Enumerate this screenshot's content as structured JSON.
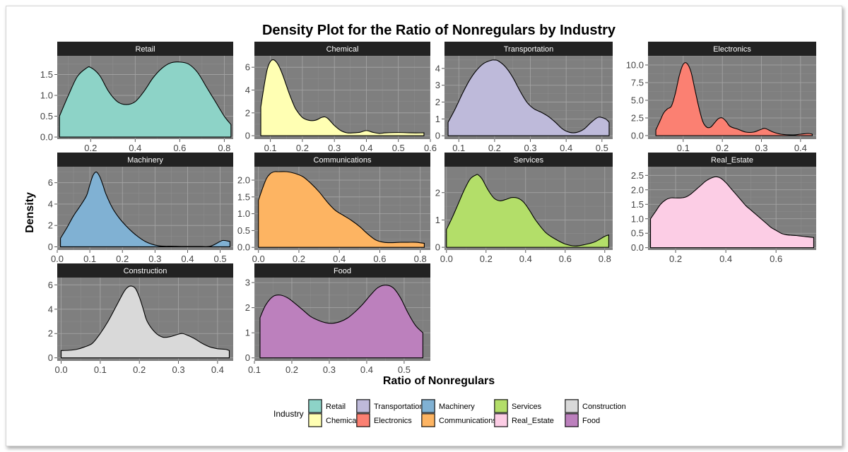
{
  "chart_data": {
    "type": "area",
    "title": "Density Plot for the Ratio of Nonregulars by Industry",
    "xlabel": "Ratio of Nonregulars",
    "ylabel": "Density",
    "grid": true,
    "legend": {
      "title": "Industry",
      "position": "bottom",
      "entries": [
        "Retail",
        "Chemical",
        "Transportation",
        "Electronics",
        "Machinery",
        "Communications",
        "Services",
        "Real_Estate",
        "Construction",
        "Food"
      ]
    },
    "panels": [
      {
        "name": "Retail",
        "color": "#8dd3c7",
        "xlim": [
          0.05,
          0.84
        ],
        "ylim": [
          -0.05,
          1.95
        ],
        "xticks": [
          0.2,
          0.4,
          0.6,
          0.8
        ],
        "xtick_labels": [
          "0.2",
          "0.4",
          "0.6",
          "0.8"
        ],
        "yticks": [
          0,
          0.5,
          1,
          1.5
        ],
        "ytick_labels": [
          "0.0",
          "0.5",
          "1.0",
          "1.5"
        ],
        "x": [
          0.06,
          0.1,
          0.14,
          0.18,
          0.2,
          0.24,
          0.28,
          0.32,
          0.36,
          0.4,
          0.44,
          0.48,
          0.52,
          0.56,
          0.6,
          0.64,
          0.68,
          0.72,
          0.76,
          0.8,
          0.83
        ],
        "y": [
          0.5,
          1.0,
          1.45,
          1.65,
          1.67,
          1.48,
          1.1,
          0.85,
          0.78,
          0.85,
          1.1,
          1.42,
          1.65,
          1.78,
          1.8,
          1.75,
          1.55,
          1.2,
          0.85,
          0.5,
          0.3
        ]
      },
      {
        "name": "Chemical",
        "color": "#ffffb3",
        "xlim": [
          0.05,
          0.6
        ],
        "ylim": [
          -0.3,
          7.0
        ],
        "xticks": [
          0.1,
          0.2,
          0.3,
          0.4,
          0.5,
          0.6
        ],
        "xtick_labels": [
          "0.1",
          "0.2",
          "0.3",
          "0.4",
          "0.5",
          "0.6"
        ],
        "yticks": [
          0,
          2,
          4,
          6
        ],
        "ytick_labels": [
          "0",
          "2",
          "4",
          "6"
        ],
        "x": [
          0.07,
          0.08,
          0.09,
          0.1,
          0.11,
          0.12,
          0.13,
          0.14,
          0.15,
          0.16,
          0.17,
          0.18,
          0.2,
          0.22,
          0.24,
          0.26,
          0.27,
          0.28,
          0.3,
          0.32,
          0.34,
          0.36,
          0.38,
          0.4,
          0.42,
          0.44,
          0.46,
          0.5,
          0.54,
          0.58
        ],
        "y": [
          2.5,
          4.3,
          5.8,
          6.5,
          6.65,
          6.4,
          5.9,
          5.2,
          4.4,
          3.6,
          2.9,
          2.3,
          1.6,
          1.35,
          1.35,
          1.6,
          1.65,
          1.5,
          0.9,
          0.45,
          0.25,
          0.25,
          0.3,
          0.45,
          0.3,
          0.2,
          0.25,
          0.28,
          0.25,
          0.25
        ]
      },
      {
        "name": "Transportation",
        "color": "#bebada",
        "xlim": [
          0.06,
          0.53
        ],
        "ylim": [
          -0.2,
          4.75
        ],
        "xticks": [
          0.1,
          0.2,
          0.3,
          0.4,
          0.5
        ],
        "xtick_labels": [
          "0.1",
          "0.2",
          "0.3",
          "0.4",
          "0.5"
        ],
        "yticks": [
          0,
          1,
          2,
          3,
          4
        ],
        "ytick_labels": [
          "0",
          "1",
          "2",
          "3",
          "4"
        ],
        "x": [
          0.07,
          0.09,
          0.11,
          0.13,
          0.15,
          0.17,
          0.19,
          0.2,
          0.21,
          0.23,
          0.25,
          0.27,
          0.29,
          0.31,
          0.33,
          0.35,
          0.37,
          0.39,
          0.41,
          0.43,
          0.45,
          0.47,
          0.49,
          0.51,
          0.52
        ],
        "y": [
          0.8,
          1.6,
          2.5,
          3.3,
          3.9,
          4.3,
          4.48,
          4.5,
          4.45,
          4.1,
          3.5,
          2.7,
          2.0,
          1.6,
          1.4,
          1.15,
          0.8,
          0.4,
          0.2,
          0.2,
          0.4,
          0.8,
          1.1,
          1.0,
          0.8
        ]
      },
      {
        "name": "Electronics",
        "color": "#fb8072",
        "xlim": [
          0.01,
          0.44
        ],
        "ylim": [
          -0.5,
          11.3
        ],
        "xticks": [
          0.1,
          0.2,
          0.3,
          0.4
        ],
        "xtick_labels": [
          "0.1",
          "0.2",
          "0.3",
          "0.4"
        ],
        "yticks": [
          0,
          2.5,
          5,
          7.5,
          10
        ],
        "ytick_labels": [
          "0.0",
          "2.5",
          "5.0",
          "7.5",
          "10.0"
        ],
        "x": [
          0.03,
          0.04,
          0.05,
          0.06,
          0.07,
          0.08,
          0.09,
          0.1,
          0.11,
          0.12,
          0.13,
          0.14,
          0.15,
          0.16,
          0.17,
          0.18,
          0.19,
          0.2,
          0.21,
          0.22,
          0.24,
          0.26,
          0.28,
          0.3,
          0.31,
          0.33,
          0.35,
          0.38,
          0.4,
          0.42,
          0.43
        ],
        "y": [
          0.8,
          2.0,
          3.2,
          3.8,
          4.2,
          6.0,
          8.5,
          10.1,
          10.2,
          9.0,
          6.5,
          4.0,
          2.0,
          1.2,
          1.2,
          1.8,
          2.4,
          2.5,
          2.0,
          1.3,
          0.9,
          0.5,
          0.5,
          0.9,
          1.0,
          0.5,
          0.2,
          0.1,
          0.2,
          0.3,
          0.2
        ]
      },
      {
        "name": "Machinery",
        "color": "#80b1d3",
        "xlim": [
          0.0,
          0.54
        ],
        "ylim": [
          -0.3,
          7.5
        ],
        "xticks": [
          0.0,
          0.1,
          0.2,
          0.3,
          0.4,
          0.5
        ],
        "xtick_labels": [
          "0.0",
          "0.1",
          "0.2",
          "0.3",
          "0.4",
          "0.5"
        ],
        "yticks": [
          0,
          2,
          4,
          6
        ],
        "ytick_labels": [
          "0",
          "2",
          "4",
          "6"
        ],
        "x": [
          0.01,
          0.03,
          0.05,
          0.07,
          0.09,
          0.1,
          0.11,
          0.12,
          0.13,
          0.14,
          0.15,
          0.17,
          0.19,
          0.21,
          0.23,
          0.25,
          0.27,
          0.29,
          0.31,
          0.33,
          0.35,
          0.38,
          0.41,
          0.44,
          0.47,
          0.5,
          0.51,
          0.53
        ],
        "y": [
          0.8,
          1.8,
          2.9,
          3.8,
          4.8,
          5.8,
          6.7,
          7.0,
          6.6,
          5.8,
          4.9,
          3.6,
          2.7,
          2.0,
          1.4,
          0.9,
          0.5,
          0.25,
          0.1,
          0.05,
          0.05,
          0.03,
          0.03,
          0.03,
          0.05,
          0.5,
          0.6,
          0.5
        ]
      },
      {
        "name": "Communications",
        "color": "#fdb462",
        "xlim": [
          -0.02,
          0.85
        ],
        "ylim": [
          -0.08,
          2.4
        ],
        "xticks": [
          0.0,
          0.2,
          0.4,
          0.6,
          0.8
        ],
        "xtick_labels": [
          "0.0",
          "0.2",
          "0.4",
          "0.6",
          "0.8"
        ],
        "yticks": [
          0,
          0.5,
          1,
          1.5,
          2
        ],
        "ytick_labels": [
          "0.0",
          "0.5",
          "1.0",
          "1.5",
          "2.0"
        ],
        "x": [
          0.0,
          0.02,
          0.04,
          0.06,
          0.08,
          0.1,
          0.14,
          0.18,
          0.22,
          0.26,
          0.3,
          0.34,
          0.38,
          0.42,
          0.46,
          0.5,
          0.54,
          0.58,
          0.62,
          0.66,
          0.7,
          0.74,
          0.78,
          0.82
        ],
        "y": [
          1.4,
          1.75,
          2.05,
          2.2,
          2.25,
          2.25,
          2.25,
          2.2,
          2.1,
          1.9,
          1.65,
          1.35,
          1.1,
          0.95,
          0.8,
          0.62,
          0.4,
          0.22,
          0.15,
          0.14,
          0.15,
          0.15,
          0.15,
          0.12
        ]
      },
      {
        "name": "Services",
        "color": "#b3de69",
        "xlim": [
          -0.01,
          0.84
        ],
        "ylim": [
          -0.1,
          2.95
        ],
        "xticks": [
          0.0,
          0.2,
          0.4,
          0.6,
          0.8
        ],
        "xtick_labels": [
          "0.0",
          "0.2",
          "0.4",
          "0.6",
          "0.8"
        ],
        "yticks": [
          0,
          1,
          2
        ],
        "ytick_labels": [
          "0",
          "1",
          "2"
        ],
        "x": [
          0.0,
          0.03,
          0.06,
          0.09,
          0.12,
          0.15,
          0.16,
          0.18,
          0.21,
          0.24,
          0.27,
          0.3,
          0.33,
          0.36,
          0.39,
          0.42,
          0.45,
          0.5,
          0.55,
          0.6,
          0.65,
          0.7,
          0.75,
          0.8,
          0.82
        ],
        "y": [
          0.65,
          1.1,
          1.6,
          2.1,
          2.5,
          2.65,
          2.65,
          2.5,
          2.1,
          1.8,
          1.7,
          1.75,
          1.82,
          1.8,
          1.65,
          1.35,
          1.0,
          0.55,
          0.3,
          0.12,
          0.05,
          0.1,
          0.2,
          0.4,
          0.45
        ]
      },
      {
        "name": "Real_Estate",
        "color": "#fccde5",
        "xlim": [
          0.09,
          0.76
        ],
        "ylim": [
          -0.08,
          2.8
        ],
        "xticks": [
          0.2,
          0.4,
          0.6
        ],
        "xtick_labels": [
          "0.2",
          "0.4",
          "0.6"
        ],
        "yticks": [
          0,
          0.5,
          1,
          1.5,
          2,
          2.5
        ],
        "ytick_labels": [
          "0.0",
          "0.5",
          "1.0",
          "1.5",
          "2.0",
          "2.5"
        ],
        "x": [
          0.1,
          0.12,
          0.14,
          0.16,
          0.18,
          0.2,
          0.22,
          0.24,
          0.26,
          0.28,
          0.3,
          0.32,
          0.34,
          0.36,
          0.38,
          0.4,
          0.42,
          0.44,
          0.46,
          0.48,
          0.5,
          0.52,
          0.54,
          0.56,
          0.58,
          0.6,
          0.62,
          0.64,
          0.66,
          0.68,
          0.7,
          0.72,
          0.74,
          0.75
        ],
        "y": [
          1.0,
          1.25,
          1.5,
          1.65,
          1.72,
          1.72,
          1.72,
          1.75,
          1.85,
          2.0,
          2.15,
          2.3,
          2.4,
          2.45,
          2.4,
          2.25,
          2.05,
          1.85,
          1.65,
          1.45,
          1.3,
          1.15,
          1.0,
          0.85,
          0.7,
          0.6,
          0.5,
          0.45,
          0.43,
          0.42,
          0.4,
          0.38,
          0.36,
          0.35
        ]
      },
      {
        "name": "Construction",
        "color": "#d9d9d9",
        "xlim": [
          -0.01,
          0.44
        ],
        "ylim": [
          -0.25,
          6.6
        ],
        "xticks": [
          0.0,
          0.1,
          0.2,
          0.3,
          0.4
        ],
        "xtick_labels": [
          "0.0",
          "0.1",
          "0.2",
          "0.3",
          "0.4"
        ],
        "yticks": [
          0,
          2,
          4,
          6
        ],
        "ytick_labels": [
          "0",
          "2",
          "4",
          "6"
        ],
        "x": [
          0.0,
          0.02,
          0.04,
          0.06,
          0.08,
          0.1,
          0.12,
          0.14,
          0.16,
          0.17,
          0.18,
          0.19,
          0.2,
          0.21,
          0.22,
          0.24,
          0.26,
          0.28,
          0.3,
          0.31,
          0.32,
          0.34,
          0.36,
          0.38,
          0.4,
          0.42,
          0.43
        ],
        "y": [
          0.6,
          0.62,
          0.7,
          0.9,
          1.2,
          2.0,
          3.0,
          4.2,
          5.4,
          5.8,
          5.9,
          5.7,
          5.0,
          4.0,
          3.0,
          2.1,
          1.7,
          1.75,
          1.95,
          2.0,
          1.9,
          1.6,
          1.2,
          0.9,
          0.75,
          0.7,
          0.6
        ]
      },
      {
        "name": "Food",
        "color": "#bc80bd",
        "xlim": [
          0.1,
          0.57
        ],
        "ylim": [
          -0.12,
          3.2
        ],
        "xticks": [
          0.1,
          0.2,
          0.3,
          0.4,
          0.5
        ],
        "xtick_labels": [
          "0.1",
          "0.2",
          "0.3",
          "0.4",
          "0.5"
        ],
        "yticks": [
          0,
          1,
          2,
          3
        ],
        "ytick_labels": [
          "0",
          "1",
          "2",
          "3"
        ],
        "x": [
          0.115,
          0.13,
          0.15,
          0.17,
          0.19,
          0.21,
          0.23,
          0.25,
          0.27,
          0.29,
          0.31,
          0.33,
          0.35,
          0.37,
          0.39,
          0.41,
          0.43,
          0.45,
          0.47,
          0.49,
          0.51,
          0.53,
          0.55
        ],
        "y": [
          1.6,
          2.1,
          2.45,
          2.5,
          2.38,
          2.15,
          1.9,
          1.65,
          1.5,
          1.4,
          1.38,
          1.45,
          1.6,
          1.85,
          2.15,
          2.5,
          2.8,
          2.9,
          2.8,
          2.4,
          1.8,
          1.3,
          1.0
        ]
      }
    ]
  }
}
